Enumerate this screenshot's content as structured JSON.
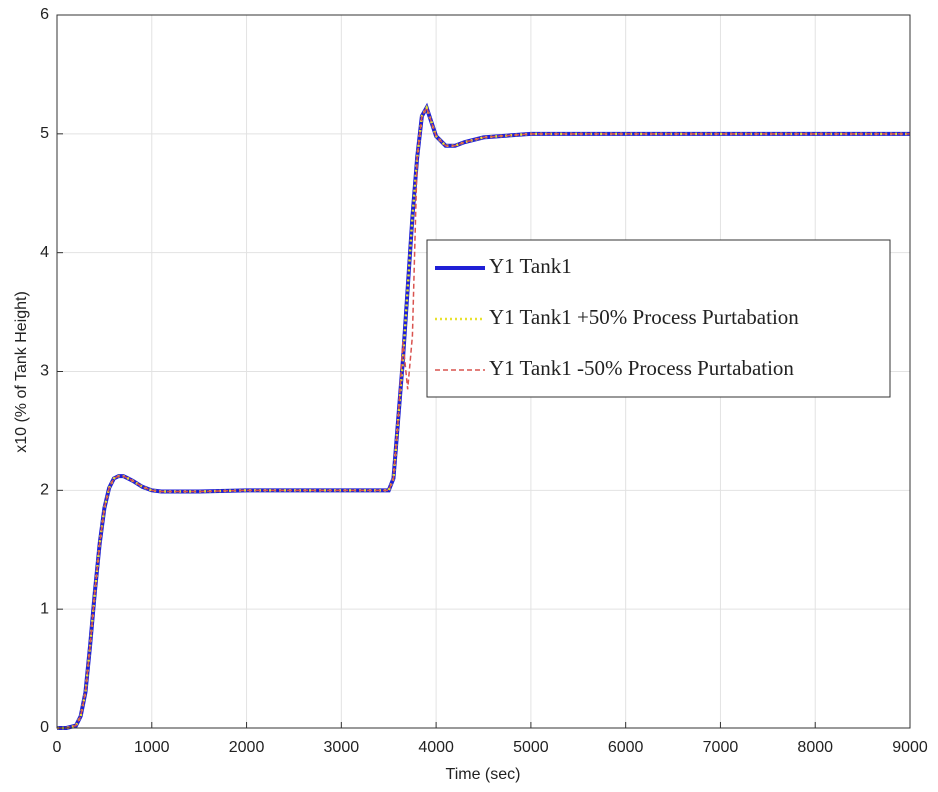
{
  "chart_data": {
    "type": "line",
    "xlabel": "Time (sec)",
    "ylabel": "x10 (% of Tank Height)",
    "x": [
      0,
      100,
      200,
      250,
      300,
      350,
      400,
      450,
      500,
      550,
      600,
      650,
      700,
      800,
      900,
      1000,
      1100,
      1200,
      1500,
      2000,
      2500,
      3000,
      3500,
      3550,
      3600,
      3650,
      3700,
      3750,
      3800,
      3850,
      3900,
      3950,
      4000,
      4100,
      4200,
      4300,
      4500,
      5000,
      6000,
      7000,
      8000,
      9000
    ],
    "series": [
      {
        "name": "Y1 Tank1",
        "color": "#1f1fd6",
        "style": "solid",
        "values": [
          0,
          0,
          0.02,
          0.1,
          0.3,
          0.7,
          1.15,
          1.55,
          1.85,
          2.02,
          2.1,
          2.12,
          2.12,
          2.08,
          2.03,
          2.0,
          1.99,
          1.99,
          1.99,
          2.0,
          2.0,
          2.0,
          2.0,
          2.1,
          2.6,
          3.1,
          3.7,
          4.3,
          4.8,
          5.15,
          5.22,
          5.1,
          4.98,
          4.9,
          4.9,
          4.93,
          4.97,
          5.0,
          5.0,
          5.0,
          5.0,
          5.0
        ]
      },
      {
        "name": "Y1 Tank1 +50% Process Purtabation",
        "color": "#e8e22e",
        "style": "dotted",
        "values": [
          0,
          0,
          0.02,
          0.1,
          0.3,
          0.7,
          1.15,
          1.55,
          1.85,
          2.02,
          2.1,
          2.12,
          2.12,
          2.08,
          2.03,
          2.0,
          1.99,
          1.99,
          1.99,
          2.0,
          2.0,
          2.0,
          2.0,
          2.1,
          2.6,
          3.1,
          3.7,
          4.3,
          4.8,
          5.15,
          5.22,
          5.1,
          4.98,
          4.9,
          4.9,
          4.93,
          4.97,
          5.0,
          5.0,
          5.0,
          5.0,
          5.0
        ]
      },
      {
        "name": "Y1 Tank1 -50% Process Purtabation",
        "color": "#d9534f",
        "style": "dashed",
        "values": [
          0,
          0,
          0.02,
          0.1,
          0.3,
          0.7,
          1.15,
          1.55,
          1.85,
          2.02,
          2.1,
          2.12,
          2.12,
          2.08,
          2.03,
          2.0,
          1.99,
          1.99,
          1.99,
          2.0,
          2.0,
          2.0,
          2.0,
          2.1,
          2.6,
          3.25,
          2.85,
          3.3,
          4.8,
          5.15,
          5.22,
          5.1,
          4.98,
          4.9,
          4.9,
          4.93,
          4.97,
          5.0,
          5.0,
          5.0,
          5.0,
          5.0
        ]
      }
    ],
    "xlim": [
      0,
      9000
    ],
    "xticks": [
      0,
      1000,
      2000,
      3000,
      4000,
      5000,
      6000,
      7000,
      8000,
      9000
    ],
    "ylim": [
      0,
      6
    ],
    "yticks": [
      0,
      1,
      2,
      3,
      4,
      5,
      6
    ],
    "grid": true,
    "legend": "right"
  }
}
